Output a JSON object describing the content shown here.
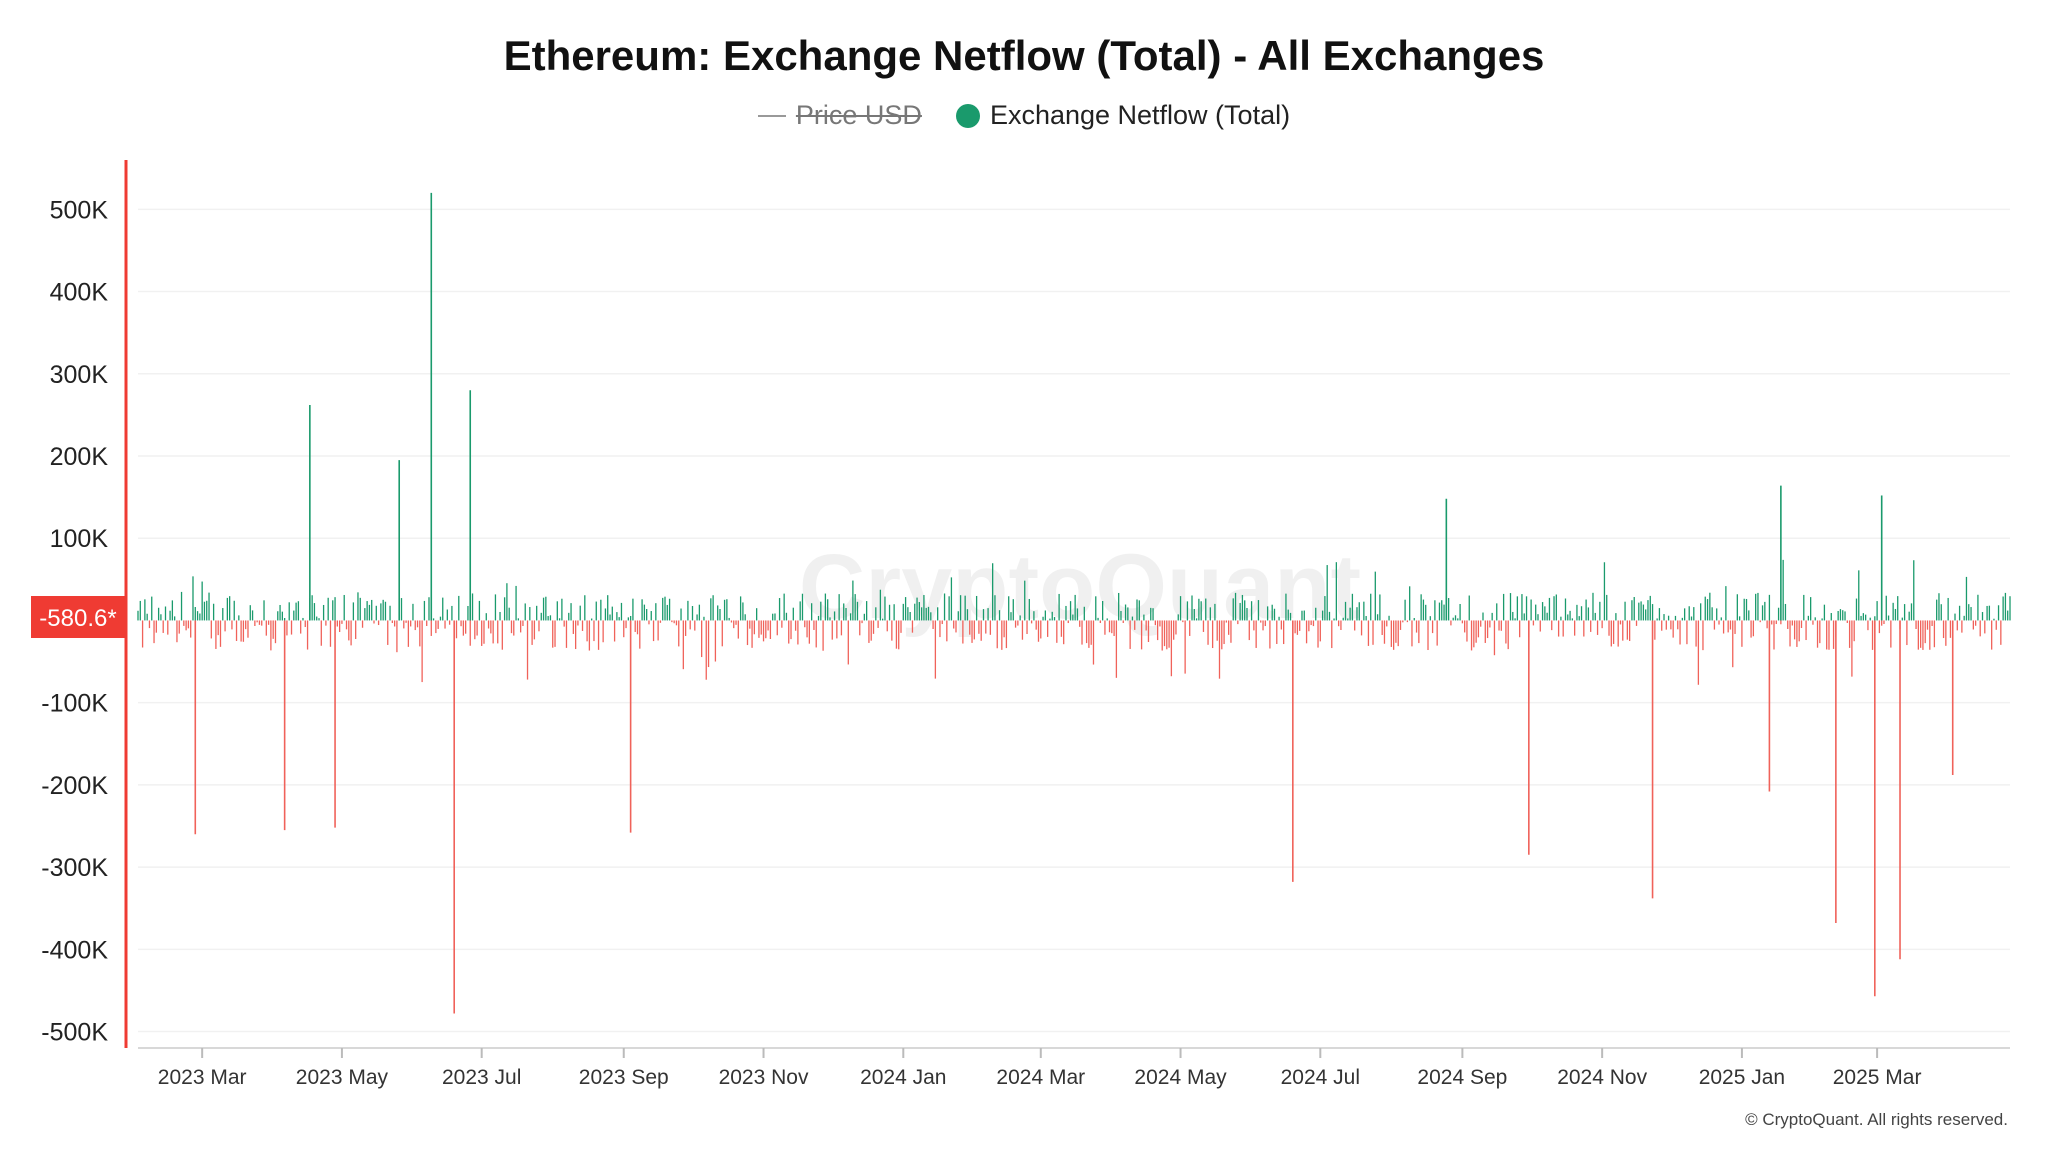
{
  "title": "Ethereum: Exchange Netflow (Total) - All Exchanges",
  "legend": {
    "price_label": "Price USD",
    "netflow_label": "Exchange Netflow (Total)"
  },
  "colors": {
    "positive": "#1a9a6c",
    "negative": "#f0625a",
    "current_badge": "#ef3b33",
    "axis_line": "#ef3b33",
    "grid": "#f1f1f1"
  },
  "current_value_label": "-580.6*",
  "footer": "© CryptoQuant. All rights reserved.",
  "watermark": "CryptoQuant",
  "chart_data": {
    "type": "bar",
    "title": "Ethereum: Exchange Netflow (Total) - All Exchanges",
    "series_name": "Exchange Netflow (Total)",
    "hidden_series": "Price USD",
    "x_range": [
      "2023-02-01",
      "2025-04-28"
    ],
    "ylim": [
      -520000,
      560000
    ],
    "y_ticks": [
      500000,
      400000,
      300000,
      200000,
      100000,
      -100000,
      -200000,
      -300000,
      -400000,
      -500000
    ],
    "y_tick_labels": [
      "500K",
      "400K",
      "300K",
      "200K",
      "100K",
      "-100K",
      "-200K",
      "-300K",
      "-400K",
      "-500K"
    ],
    "x_ticks": [
      "2023-03-01",
      "2023-05-01",
      "2023-07-01",
      "2023-09-01",
      "2023-11-01",
      "2024-01-01",
      "2024-03-01",
      "2024-05-01",
      "2024-07-01",
      "2024-09-01",
      "2024-11-01",
      "2025-01-01",
      "2025-03-01"
    ],
    "x_tick_labels": [
      "2023 Mar",
      "2023 May",
      "2023 Jul",
      "2023 Sep",
      "2023 Nov",
      "2024 Jan",
      "2024 Mar",
      "2024 May",
      "2024 Jul",
      "2024 Sep",
      "2024 Nov",
      "2025 Jan",
      "2025 Mar"
    ],
    "grid": true,
    "legend_position": "top-center",
    "notable_points": [
      {
        "x": "2023-02-26",
        "y": -260000
      },
      {
        "x": "2023-04-06",
        "y": -255000
      },
      {
        "x": "2023-04-17",
        "y": 262000
      },
      {
        "x": "2023-04-28",
        "y": -252000
      },
      {
        "x": "2023-05-26",
        "y": 195000
      },
      {
        "x": "2023-06-09",
        "y": 520000
      },
      {
        "x": "2023-06-19",
        "y": -478000
      },
      {
        "x": "2023-06-26",
        "y": 280000
      },
      {
        "x": "2023-09-04",
        "y": -258000
      },
      {
        "x": "2024-06-19",
        "y": -318000
      },
      {
        "x": "2024-08-25",
        "y": 148000
      },
      {
        "x": "2024-09-30",
        "y": -285000
      },
      {
        "x": "2024-11-23",
        "y": -338000
      },
      {
        "x": "2025-01-13",
        "y": -208000
      },
      {
        "x": "2025-01-18",
        "y": 164000
      },
      {
        "x": "2025-02-11",
        "y": -368000
      },
      {
        "x": "2025-02-28",
        "y": -457000
      },
      {
        "x": "2025-03-03",
        "y": 152000
      },
      {
        "x": "2025-03-11",
        "y": -412000
      },
      {
        "x": "2025-04-03",
        "y": -188000
      }
    ]
  }
}
